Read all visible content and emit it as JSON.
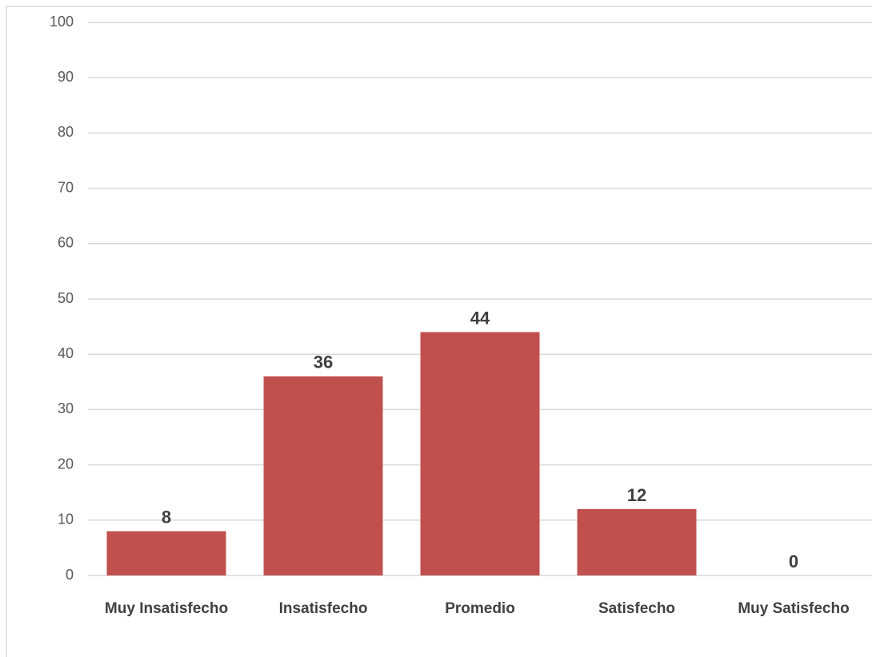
{
  "chart_data": {
    "type": "bar",
    "categories": [
      "Muy Insatisfecho",
      "Insatisfecho",
      "Promedio",
      "Satisfecho",
      "Muy Satisfecho"
    ],
    "values": [
      8,
      36,
      44,
      12,
      0
    ],
    "color": "#c0504d",
    "ylim": [
      0,
      100
    ],
    "yticks": [
      0,
      10,
      20,
      30,
      40,
      50,
      60,
      70,
      80,
      90,
      100
    ],
    "grid": true
  }
}
